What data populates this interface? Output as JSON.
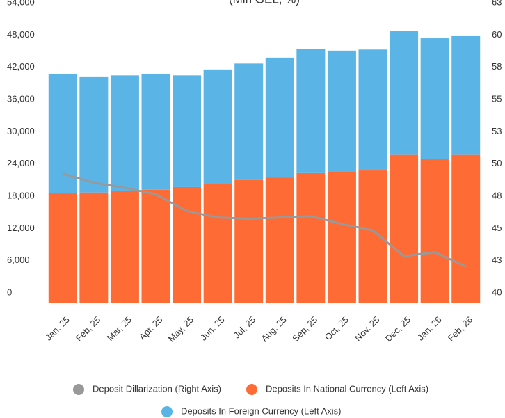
{
  "chart_data": {
    "type": "bar",
    "stacked": true,
    "subtitle": "(Mln GEL, %)",
    "categories": [
      "Jan, 25",
      "Feb, 25",
      "Mar, 25",
      "Apr, 25",
      "May, 25",
      "Jun, 25",
      "Jul, 25",
      "Aug, 25",
      "Sep, 25",
      "Oct, 25",
      "Nov, 25",
      "Dec, 25",
      "Jan, 26",
      "Feb, 26"
    ],
    "series": [
      {
        "name": "Deposit Dillarization (Right Axis)",
        "type": "line",
        "axis": "y2",
        "color": "#999999",
        "values": [
          50.0,
          49.3,
          48.9,
          48.4,
          47.1,
          46.6,
          46.5,
          46.6,
          46.7,
          46.1,
          45.6,
          43.6,
          43.9,
          42.8
        ]
      },
      {
        "name": "Deposits In National Currency (Left Axis)",
        "type": "bar",
        "color": "#ff6b35",
        "values": [
          20400,
          20500,
          20800,
          21000,
          21500,
          22200,
          22800,
          23300,
          24100,
          24400,
          24600,
          27500,
          26700,
          27500
        ]
      },
      {
        "name": "Deposits In Foreign Currency (Left Axis)",
        "type": "bar",
        "color": "#5ab4e5",
        "values": [
          22200,
          21600,
          21500,
          21600,
          20800,
          21200,
          21700,
          22300,
          23100,
          22500,
          22500,
          23000,
          22500,
          22100
        ]
      }
    ],
    "ylim": [
      0,
      54000
    ],
    "yticks": [
      0,
      {
        "value": 6000,
        "label": "6,000"
      },
      {
        "value": 12000,
        "label": "12,000"
      },
      {
        "value": 18000,
        "label": "18,000"
      },
      {
        "value": 24000,
        "label": "24,000"
      },
      {
        "value": 30000,
        "label": "30,000"
      },
      {
        "value": 36000,
        "label": "36,000"
      },
      {
        "value": 42000,
        "label": "42,000"
      },
      {
        "value": 48000,
        "label": "48,000"
      },
      {
        "value": 54000,
        "label": "54,000"
      }
    ],
    "y2lim": [
      40,
      62.5
    ],
    "y2ticks": [
      40,
      {
        "value": 42.5,
        "label": "43"
      },
      45,
      {
        "value": 47.5,
        "label": "48"
      },
      50,
      {
        "value": 52.5,
        "label": "53"
      },
      55,
      {
        "value": 57.5,
        "label": "58"
      },
      60,
      {
        "value": 62.5,
        "label": "63"
      }
    ],
    "legend": "bottom",
    "grid": false
  }
}
